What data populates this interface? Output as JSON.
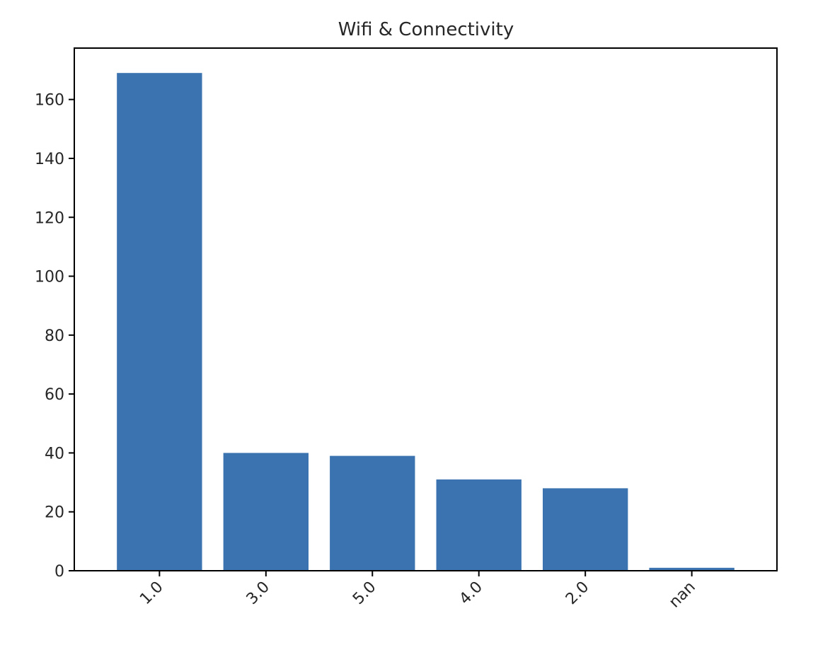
{
  "chart_data": {
    "type": "bar",
    "title": "Wifi & Connectivity",
    "xlabel": "",
    "ylabel": "",
    "categories": [
      "1.0",
      "3.0",
      "5.0",
      "4.0",
      "2.0",
      "nan"
    ],
    "values": [
      169,
      40,
      39,
      31,
      28,
      1
    ],
    "ylim": [
      0,
      177.45
    ],
    "yticks": [
      0,
      20,
      40,
      60,
      80,
      100,
      120,
      140,
      160
    ],
    "bar_color": "#3a73b0",
    "x_tick_rotation_deg": 45,
    "grid": false,
    "legend": "none"
  }
}
